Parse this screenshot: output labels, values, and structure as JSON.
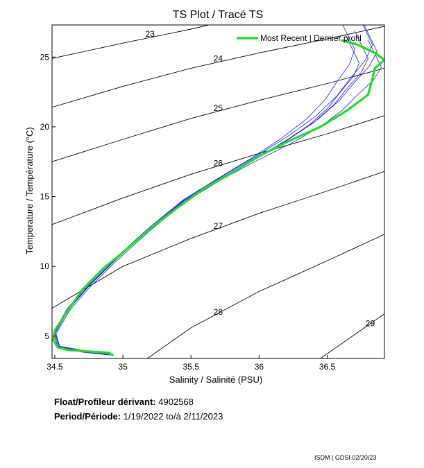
{
  "chart_data": {
    "type": "line",
    "title": "TS Plot / Tracé TS",
    "xlabel": "Salinity / Salinité (PSU)",
    "ylabel": "Temperature / Température (°C)",
    "xlim": [
      34.48,
      36.92
    ],
    "ylim": [
      3.4,
      27.3
    ],
    "xticks": [
      34.5,
      35,
      35.5,
      36,
      36.5
    ],
    "yticks": [
      5,
      10,
      15,
      20,
      25
    ],
    "grid": false,
    "legend": {
      "position": "top-right",
      "entries": [
        "Most Recent | Dernier profil"
      ]
    },
    "density_contours": [
      {
        "label": "23",
        "points": [
          [
            34.48,
            24.9
          ],
          [
            35.0,
            26.0
          ],
          [
            35.5,
            27.0
          ],
          [
            35.9,
            27.9
          ]
        ]
      },
      {
        "label": "24",
        "points": [
          [
            34.48,
            21.4
          ],
          [
            35.0,
            22.9
          ],
          [
            35.5,
            24.2
          ],
          [
            36.0,
            25.3
          ],
          [
            36.5,
            26.3
          ],
          [
            36.92,
            27.2
          ]
        ]
      },
      {
        "label": "25",
        "points": [
          [
            34.48,
            17.5
          ],
          [
            35.0,
            19.1
          ],
          [
            35.5,
            20.6
          ],
          [
            36.0,
            21.9
          ],
          [
            36.5,
            23.1
          ],
          [
            36.92,
            24.2
          ]
        ]
      },
      {
        "label": "26",
        "points": [
          [
            34.48,
            13.0
          ],
          [
            35.0,
            14.9
          ],
          [
            35.5,
            16.6
          ],
          [
            36.0,
            18.1
          ],
          [
            36.5,
            19.5
          ],
          [
            36.92,
            20.8
          ]
        ]
      },
      {
        "label": "27",
        "points": [
          [
            34.48,
            7.0
          ],
          [
            35.0,
            10.0
          ],
          [
            35.5,
            12.0
          ],
          [
            36.0,
            13.8
          ],
          [
            36.5,
            15.4
          ],
          [
            36.92,
            16.8
          ]
        ]
      },
      {
        "label": "28",
        "points": [
          [
            35.18,
            3.4
          ],
          [
            35.5,
            5.6
          ],
          [
            36.0,
            8.2
          ],
          [
            36.5,
            10.4
          ],
          [
            36.92,
            12.3
          ]
        ]
      },
      {
        "label": "29",
        "points": [
          [
            36.45,
            3.4
          ],
          [
            36.7,
            5.1
          ],
          [
            36.92,
            6.6
          ]
        ]
      }
    ],
    "series": [
      {
        "name": "Most Recent | Dernier profil",
        "color": "#22dd22",
        "points": [
          [
            34.93,
            3.6
          ],
          [
            34.9,
            3.8
          ],
          [
            34.75,
            3.9
          ],
          [
            34.6,
            4.0
          ],
          [
            34.52,
            4.2
          ],
          [
            34.49,
            4.7
          ],
          [
            34.5,
            5.4
          ],
          [
            34.58,
            6.6
          ],
          [
            34.7,
            8.3
          ],
          [
            34.85,
            9.8
          ],
          [
            35.0,
            11.0
          ],
          [
            35.2,
            12.7
          ],
          [
            35.4,
            14.2
          ],
          [
            35.6,
            15.6
          ],
          [
            35.8,
            16.7
          ],
          [
            36.0,
            17.9
          ],
          [
            36.2,
            18.9
          ],
          [
            36.45,
            20.0
          ],
          [
            36.65,
            21.2
          ],
          [
            36.8,
            22.3
          ],
          [
            36.83,
            23.4
          ],
          [
            36.85,
            24.2
          ],
          [
            36.92,
            24.8
          ],
          [
            36.85,
            25.3
          ],
          [
            36.72,
            25.9
          ],
          [
            36.6,
            26.2
          ]
        ]
      },
      {
        "name": "",
        "color": "#1a1aff",
        "points": [
          [
            34.9,
            3.7
          ],
          [
            34.7,
            3.9
          ],
          [
            34.53,
            4.2
          ],
          [
            34.5,
            5.2
          ],
          [
            34.6,
            6.9
          ],
          [
            34.75,
            8.6
          ],
          [
            34.95,
            10.5
          ],
          [
            35.2,
            12.7
          ],
          [
            35.45,
            14.7
          ],
          [
            35.7,
            16.2
          ],
          [
            35.95,
            17.6
          ],
          [
            36.2,
            19.0
          ],
          [
            36.4,
            20.3
          ],
          [
            36.55,
            21.6
          ],
          [
            36.65,
            22.8
          ],
          [
            36.75,
            23.9
          ],
          [
            36.8,
            24.9
          ],
          [
            36.75,
            25.9
          ],
          [
            36.7,
            26.9
          ]
        ]
      }
    ]
  },
  "info": {
    "float_label": "Float/Profileur dérivant:",
    "float_value": "4902568",
    "period_label": "Period/Période:",
    "period_start": "1/19/2022",
    "period_sep": "to/à",
    "period_end": "2/11/2023"
  },
  "footer": "ISDM | GDSI  02/20/23"
}
